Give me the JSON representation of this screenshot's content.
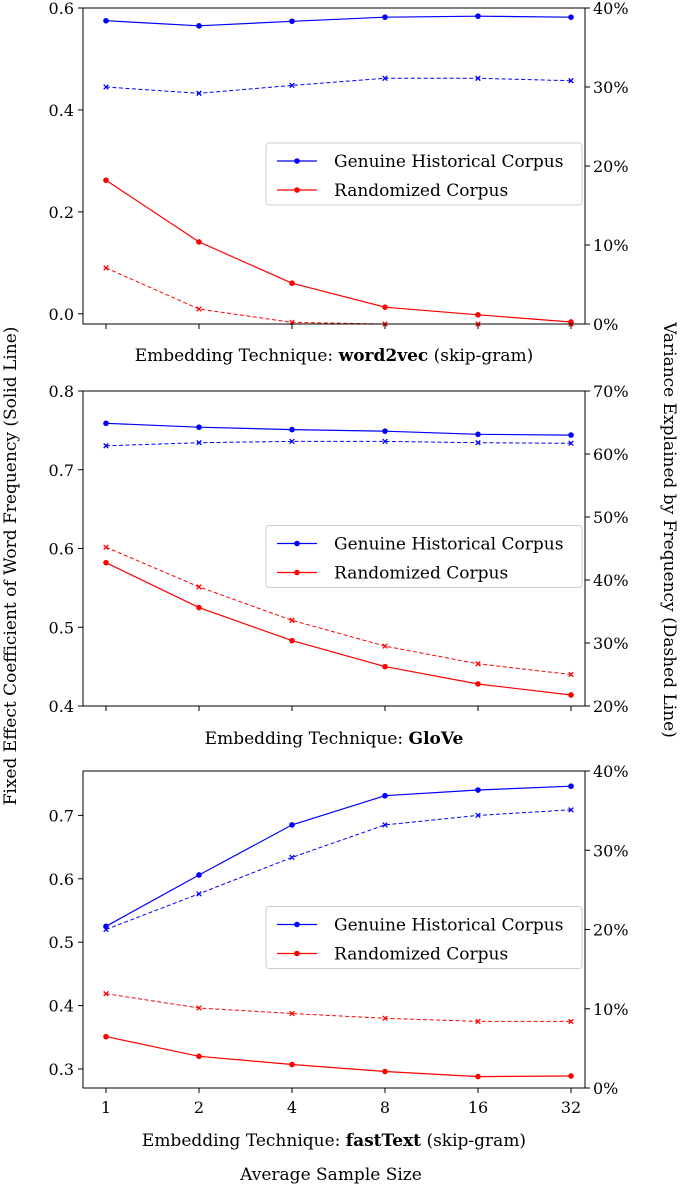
{
  "figure": {
    "shared_ylabel_left": "Fixed Effect Coefficient of Word Frequency (Solid Line)",
    "shared_ylabel_right": "Variance Explained by Frequency (Dashed Line)",
    "shared_xlabel": "Average Sample Size"
  },
  "chart_data": [
    {
      "type": "line",
      "title_prefix": "Embedding Technique: ",
      "title_bold": "word2vec",
      "title_suffix": " (skip-gram)",
      "categories": [
        "1",
        "2",
        "4",
        "8",
        "16",
        "32"
      ],
      "ylim_left": [
        -0.02,
        0.6
      ],
      "yticks_left": [
        0.0,
        0.2,
        0.4,
        0.6
      ],
      "ytick_labels_left": [
        "0.0",
        "0.2",
        "0.4",
        "0.6"
      ],
      "ylim_right_percent": [
        0,
        40
      ],
      "yticks_right_percent": [
        0,
        10,
        20,
        30,
        40
      ],
      "ytick_labels_right": [
        "0%",
        "10%",
        "20%",
        "30%",
        "40%"
      ],
      "legend_position": "center-right",
      "series": [
        {
          "name": "Genuine Historical Corpus",
          "color": "#0000ff",
          "axis": "left",
          "style": "solid",
          "values": [
            0.575,
            0.565,
            0.574,
            0.582,
            0.584,
            0.582
          ]
        },
        {
          "name": "Randomized Corpus",
          "color": "#ff0000",
          "axis": "left",
          "style": "solid",
          "values": [
            0.262,
            0.141,
            0.06,
            0.013,
            -0.002,
            -0.016
          ]
        },
        {
          "color": "#0000ff",
          "axis": "right",
          "style": "dashed",
          "values": [
            30.0,
            29.2,
            30.2,
            31.1,
            31.1,
            30.8
          ]
        },
        {
          "color": "#ff0000",
          "axis": "right",
          "style": "dashed",
          "values": [
            7.1,
            1.9,
            0.2,
            0.0,
            0.0,
            0.0
          ]
        }
      ]
    },
    {
      "type": "line",
      "title_prefix": "Embedding Technique: ",
      "title_bold": "GloVe",
      "title_suffix": "",
      "categories": [
        "1",
        "2",
        "4",
        "8",
        "16",
        "32"
      ],
      "ylim_left": [
        0.4,
        0.8
      ],
      "yticks_left": [
        0.4,
        0.5,
        0.6,
        0.7,
        0.8
      ],
      "ytick_labels_left": [
        "0.4",
        "0.5",
        "0.6",
        "0.7",
        "0.8"
      ],
      "ylim_right_percent": [
        20,
        70
      ],
      "yticks_right_percent": [
        20,
        30,
        40,
        50,
        60,
        70
      ],
      "ytick_labels_right": [
        "20%",
        "30%",
        "40%",
        "50%",
        "60%",
        "70%"
      ],
      "legend_position": "center-right",
      "series": [
        {
          "name": "Genuine Historical Corpus",
          "color": "#0000ff",
          "axis": "left",
          "style": "solid",
          "values": [
            0.759,
            0.754,
            0.751,
            0.749,
            0.745,
            0.744
          ]
        },
        {
          "name": "Randomized Corpus",
          "color": "#ff0000",
          "axis": "left",
          "style": "solid",
          "values": [
            0.582,
            0.525,
            0.483,
            0.45,
            0.428,
            0.414
          ]
        },
        {
          "color": "#0000ff",
          "axis": "right",
          "style": "dashed",
          "values": [
            61.3,
            61.8,
            62.0,
            62.0,
            61.8,
            61.7
          ]
        },
        {
          "color": "#ff0000",
          "axis": "right",
          "style": "dashed",
          "values": [
            45.2,
            38.9,
            33.6,
            29.5,
            26.7,
            25.0
          ]
        }
      ]
    },
    {
      "type": "line",
      "title_prefix": "Embedding Technique: ",
      "title_bold": "fastText",
      "title_suffix": " (skip-gram)",
      "categories": [
        "1",
        "2",
        "4",
        "8",
        "16",
        "32"
      ],
      "ylim_left": [
        0.27,
        0.77
      ],
      "yticks_left": [
        0.3,
        0.4,
        0.5,
        0.6,
        0.7
      ],
      "ytick_labels_left": [
        "0.3",
        "0.4",
        "0.5",
        "0.6",
        "0.7"
      ],
      "ylim_right_percent": [
        0,
        40
      ],
      "yticks_right_percent": [
        0,
        10,
        20,
        30,
        40
      ],
      "ytick_labels_right": [
        "0%",
        "10%",
        "20%",
        "30%",
        "40%"
      ],
      "legend_position": "center-right",
      "series": [
        {
          "name": "Genuine Historical Corpus",
          "color": "#0000ff",
          "axis": "left",
          "style": "solid",
          "values": [
            0.525,
            0.606,
            0.685,
            0.731,
            0.74,
            0.746
          ]
        },
        {
          "name": "Randomized Corpus",
          "color": "#ff0000",
          "axis": "left",
          "style": "solid",
          "values": [
            0.351,
            0.32,
            0.307,
            0.296,
            0.288,
            0.289
          ]
        },
        {
          "color": "#0000ff",
          "axis": "right",
          "style": "dashed",
          "values": [
            20.0,
            24.5,
            29.1,
            33.2,
            34.4,
            35.1
          ]
        },
        {
          "color": "#ff0000",
          "axis": "right",
          "style": "dashed",
          "values": [
            11.9,
            10.1,
            9.4,
            8.8,
            8.4,
            8.4
          ]
        }
      ]
    }
  ]
}
